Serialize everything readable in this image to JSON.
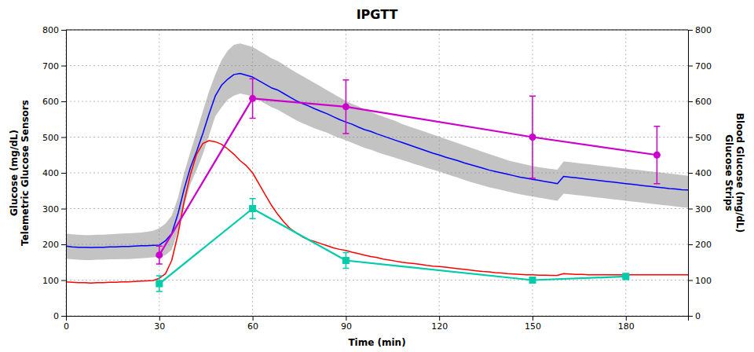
{
  "chart_data": {
    "type": "line",
    "title": "IPGTT",
    "x_label": "Time (min)",
    "y_label": "Glucose (mg/dL)\nTelemetric Glucose Sensors",
    "y2_label": "Blood Glucose (mg/dL)\nGlucose Strips",
    "xlim": [
      0,
      200
    ],
    "ylim": [
      0,
      800
    ],
    "y2lim": [
      0,
      800
    ],
    "xticks": [
      0,
      30,
      60,
      90,
      120,
      150,
      180
    ],
    "yticks": [
      0,
      100,
      200,
      300,
      400,
      500,
      600,
      700,
      800
    ],
    "y2ticks": [
      0,
      100,
      200,
      300,
      400,
      500,
      600,
      700,
      800
    ],
    "grid": true,
    "x": [
      0,
      2,
      4,
      6,
      8,
      10,
      12,
      14,
      16,
      18,
      20,
      22,
      24,
      26,
      28,
      30,
      32,
      34,
      36,
      38,
      40,
      42,
      44,
      46,
      48,
      50,
      52,
      54,
      56,
      58,
      60,
      62,
      64,
      66,
      68,
      70,
      72,
      74,
      76,
      78,
      80,
      82,
      84,
      86,
      88,
      90,
      92,
      94,
      96,
      98,
      100,
      102,
      104,
      106,
      108,
      110,
      112,
      114,
      116,
      118,
      120,
      122,
      124,
      126,
      128,
      130,
      132,
      134,
      136,
      138,
      140,
      142,
      144,
      146,
      148,
      150,
      152,
      154,
      156,
      158,
      160,
      162,
      164,
      166,
      168,
      170,
      172,
      174,
      176,
      178,
      180,
      182,
      184,
      186,
      188,
      190,
      192,
      194,
      196,
      198,
      200
    ],
    "series": [
      {
        "type": "area",
        "color": "#888888",
        "upper": [
          230,
          228,
          227,
          226,
          226,
          227,
          227,
          228,
          229,
          230,
          231,
          232,
          233,
          235,
          238,
          245,
          258,
          280,
          330,
          400,
          458,
          515,
          572,
          628,
          675,
          715,
          742,
          758,
          762,
          757,
          752,
          742,
          732,
          721,
          713,
          703,
          691,
          681,
          671,
          661,
          651,
          641,
          631,
          621,
          611,
          601,
          593,
          586,
          577,
          571,
          563,
          557,
          551,
          545,
          537,
          531,
          525,
          519,
          513,
          507,
          501,
          495,
          489,
          483,
          477,
          471,
          465,
          459,
          453,
          447,
          441,
          435,
          431,
          427,
          423,
          419,
          416,
          413,
          411,
          409,
          432,
          430,
          428,
          426,
          424,
          422,
          420,
          418,
          416,
          414,
          412,
          410,
          408,
          406,
          404,
          402,
          400,
          398,
          396,
          394,
          392
        ],
        "lower": [
          160,
          158,
          157,
          156,
          156,
          157,
          157,
          158,
          158,
          159,
          159,
          160,
          161,
          162,
          164,
          166,
          170,
          185,
          238,
          308,
          368,
          408,
          452,
          505,
          558,
          583,
          605,
          616,
          622,
          618,
          614,
          604,
          594,
          584,
          577,
          567,
          557,
          547,
          539,
          532,
          524,
          518,
          512,
          504,
          497,
          491,
          484,
          477,
          470,
          465,
          458,
          452,
          447,
          442,
          436,
          431,
          425,
          420,
          414,
          409,
          404,
          398,
          392,
          387,
          380,
          375,
          370,
          365,
          360,
          356,
          352,
          348,
          344,
          340,
          337,
          334,
          331,
          328,
          325,
          322,
          342,
          340,
          338,
          336,
          334,
          332,
          330,
          328,
          326,
          324,
          322,
          320,
          318,
          316,
          314,
          312,
          310,
          308,
          306,
          304,
          302
        ]
      },
      {
        "type": "line",
        "color": "#0000ff",
        "values": [
          195,
          193,
          192,
          192,
          191,
          192,
          192,
          193,
          193,
          194,
          194,
          195,
          196,
          196,
          197,
          198,
          210,
          230,
          285,
          355,
          415,
          460,
          510,
          565,
          615,
          645,
          662,
          675,
          678,
          673,
          668,
          658,
          648,
          638,
          632,
          622,
          612,
          602,
          594,
          587,
          579,
          572,
          565,
          557,
          549,
          542,
          536,
          528,
          521,
          516,
          509,
          503,
          497,
          491,
          485,
          479,
          473,
          467,
          461,
          455,
          450,
          444,
          439,
          434,
          428,
          423,
          418,
          413,
          408,
          404,
          400,
          396,
          392,
          388,
          385,
          382,
          379,
          376,
          373,
          370,
          390,
          388,
          386,
          384,
          382,
          380,
          378,
          376,
          374,
          372,
          370,
          368,
          366,
          364,
          362,
          360,
          358,
          356,
          355,
          353,
          352
        ]
      },
      {
        "type": "line",
        "color": "#ff0000",
        "values": [
          95,
          94,
          93,
          93,
          92,
          93,
          93,
          94,
          94,
          95,
          95,
          96,
          97,
          98,
          99,
          105,
          118,
          155,
          228,
          320,
          395,
          452,
          482,
          490,
          487,
          480,
          467,
          452,
          434,
          420,
          400,
          370,
          340,
          310,
          285,
          263,
          245,
          232,
          221,
          213,
          208,
          202,
          196,
          190,
          186,
          183,
          178,
          174,
          170,
          166,
          163,
          159,
          156,
          153,
          150,
          148,
          146,
          144,
          141,
          139,
          138,
          136,
          134,
          132,
          130,
          128,
          126,
          124,
          123,
          121,
          120,
          118,
          117,
          116,
          115,
          115,
          114,
          114,
          113,
          113,
          118,
          117,
          116,
          116,
          115,
          115,
          115,
          115,
          115,
          115,
          115,
          115,
          115,
          115,
          115,
          115,
          115,
          115,
          115,
          115,
          115
        ]
      },
      {
        "type": "line",
        "axis": "y2",
        "color": "#cc00cc",
        "marker": "circle",
        "x": [
          30,
          60,
          90,
          150,
          190
        ],
        "values": [
          170,
          608,
          585,
          500,
          450
        ],
        "errors": [
          25,
          55,
          75,
          115,
          80
        ]
      },
      {
        "type": "line",
        "axis": "y2",
        "color": "#00ccaa",
        "marker": "square",
        "x": [
          30,
          60,
          90,
          150,
          180
        ],
        "values": [
          90,
          300,
          155,
          100,
          110
        ],
        "errors": [
          22,
          28,
          22,
          8,
          8
        ]
      }
    ]
  }
}
